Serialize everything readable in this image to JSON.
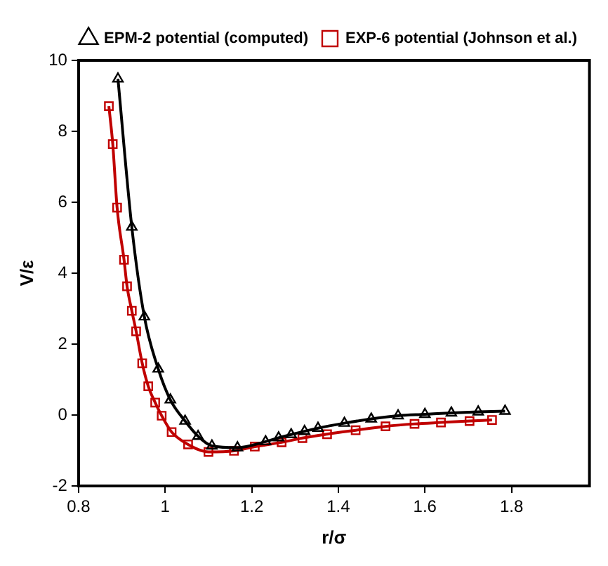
{
  "chart_data": {
    "type": "line",
    "xlabel": "r/σ",
    "ylabel": "V/ε",
    "xlim": [
      0.8,
      1.98
    ],
    "xticks": [
      0.8,
      1,
      1.2,
      1.4,
      1.6,
      1.8
    ],
    "ylim": [
      -2,
      10
    ],
    "yticks": [
      -2,
      0,
      2,
      4,
      6,
      8,
      10
    ],
    "grid": false,
    "legend": "top right",
    "line_style": "solid",
    "series": [
      {
        "name": "EPM-2 potential (computed)",
        "color": "#000000",
        "marker": "triangle",
        "x": [
          0.891,
          0.923,
          0.952,
          0.984,
          1.012,
          1.046,
          1.076,
          1.108,
          1.167,
          1.232,
          1.262,
          1.291,
          1.322,
          1.353,
          1.414,
          1.476,
          1.538,
          1.6,
          1.661,
          1.723,
          1.785
        ],
        "values": [
          9.48,
          5.3,
          2.77,
          1.3,
          0.43,
          -0.17,
          -0.6,
          -0.87,
          -0.92,
          -0.75,
          -0.64,
          -0.55,
          -0.46,
          -0.37,
          -0.23,
          -0.11,
          -0.02,
          0.02,
          0.06,
          0.09,
          0.11
        ]
      },
      {
        "name": "EXP-6 potential (Johnson et al.)",
        "color": "#c00000",
        "marker": "square",
        "x": [
          0.87,
          0.879,
          0.889,
          0.905,
          0.912,
          0.923,
          0.933,
          0.947,
          0.961,
          0.977,
          0.992,
          1.015,
          1.053,
          1.1,
          1.159,
          1.207,
          1.269,
          1.317,
          1.374,
          1.44,
          1.509,
          1.576,
          1.637,
          1.703,
          1.755
        ],
        "values": [
          8.71,
          7.64,
          5.85,
          4.38,
          3.63,
          2.94,
          2.36,
          1.46,
          0.81,
          0.35,
          -0.02,
          -0.48,
          -0.83,
          -1.04,
          -1.01,
          -0.89,
          -0.77,
          -0.65,
          -0.54,
          -0.43,
          -0.32,
          -0.25,
          -0.21,
          -0.17,
          -0.14
        ]
      }
    ]
  }
}
